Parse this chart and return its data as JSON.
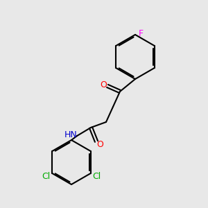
{
  "bg_color": "#e8e8e8",
  "bond_color": "#000000",
  "bond_width": 1.5,
  "colors": {
    "O": "#ff0000",
    "N": "#0000cd",
    "F": "#ff00ff",
    "Cl": "#00aa00",
    "H": "#888888",
    "C": "#000000"
  },
  "font_size": 9,
  "font_size_small": 8
}
